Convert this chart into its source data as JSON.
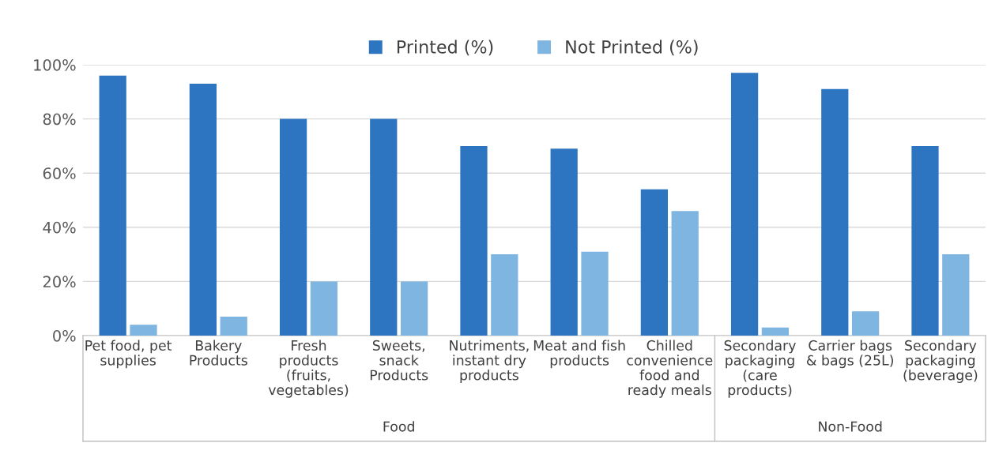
{
  "chart_data": {
    "type": "bar",
    "categories": [
      "Pet food, pet\nsupplies",
      "Bakery\nProducts",
      "Fresh\nproducts\n(fruits,\nvegetables)",
      "Sweets,\nsnack\nProducts",
      "Nutriments,\ninstant dry\nproducts",
      "Meat and fish\nproducts",
      "Chilled\nconvenience\nfood and\nready meals",
      "Secondary\npackaging\n(care\nproducts)",
      "Carrier bags\n& bags (25L)",
      "Secondary\npackaging\n(beverage)"
    ],
    "series": [
      {
        "name": "Printed (%)",
        "color": "#2e75c1",
        "values": [
          96,
          93,
          80,
          80,
          70,
          69,
          54,
          97,
          91,
          70
        ]
      },
      {
        "name": "Not Printed (%)",
        "color": "#7fb5e1",
        "values": [
          4,
          7,
          20,
          20,
          30,
          31,
          46,
          3,
          9,
          30
        ]
      }
    ],
    "ylim": [
      0,
      100
    ],
    "yticks": [
      {
        "value": 0,
        "label": "0%"
      },
      {
        "value": 20,
        "label": "20%"
      },
      {
        "value": 40,
        "label": "40%"
      },
      {
        "value": 60,
        "label": "60%"
      },
      {
        "value": 80,
        "label": "80%"
      },
      {
        "value": 100,
        "label": "100%"
      }
    ],
    "grid": "y",
    "legend": "top",
    "annotations": [
      "Food",
      "Non-Food"
    ]
  }
}
